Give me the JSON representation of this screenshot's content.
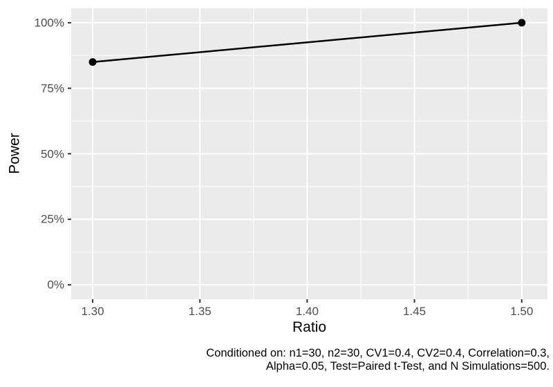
{
  "figure": {
    "background": "#FFFFFF"
  },
  "chart_data": {
    "type": "line",
    "title": "",
    "xlabel": "Ratio",
    "ylabel": "Power",
    "series": [
      {
        "name": "Power",
        "x": [
          1.3,
          1.5
        ],
        "y_percent": [
          85,
          100
        ]
      }
    ],
    "x_ticks": [
      1.3,
      1.35,
      1.4,
      1.45,
      1.5
    ],
    "x_tick_labels": [
      "1.30",
      "1.35",
      "1.40",
      "1.45",
      "1.50"
    ],
    "x_minor_ticks": [
      1.325,
      1.375,
      1.425,
      1.475
    ],
    "y_ticks": [
      0,
      25,
      50,
      75,
      100
    ],
    "y_tick_labels": [
      "0%",
      "25%",
      "50%",
      "75%",
      "100%"
    ],
    "y_minor_ticks": [
      12.5,
      37.5,
      62.5,
      87.5
    ],
    "xlim": [
      1.29,
      1.512
    ],
    "ylim_percent": [
      -5.5,
      105.5
    ],
    "grid": true,
    "legend": false
  },
  "caption": {
    "line1": "Conditioned on: n1=30, n2=30, CV1=0.4, CV2=0.4, Correlation=0.3,",
    "line2": "Alpha=0.05, Test=Paired t-Test, and N Simulations=500."
  },
  "colors": {
    "panel_bg": "#EBEBEB",
    "grid": "#FFFFFF",
    "axis_text": "#4D4D4D",
    "tick_mark": "#333333",
    "series": "#000000",
    "axis_title": "#000000",
    "caption": "#000000"
  }
}
